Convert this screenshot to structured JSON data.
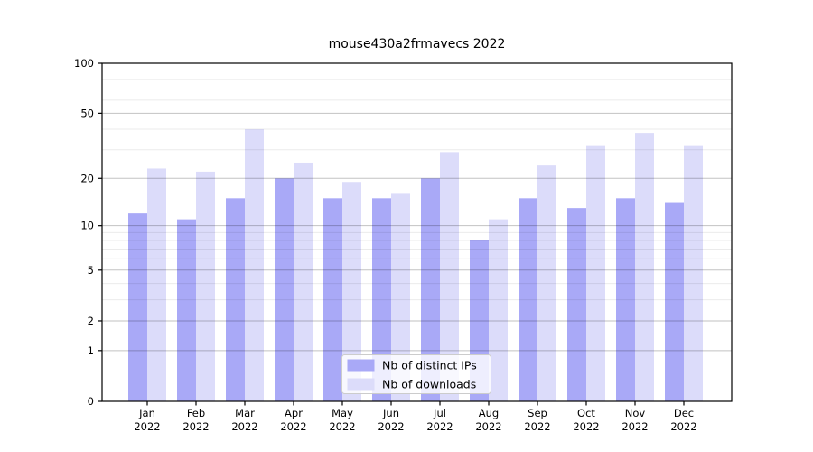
{
  "title": "mouse430a2frmavecs 2022",
  "chart_data": {
    "type": "bar",
    "title": "mouse430a2frmavecs 2022",
    "categories": [
      "Jan 2022",
      "Feb 2022",
      "Mar 2022",
      "Apr 2022",
      "May 2022",
      "Jun 2022",
      "Jul 2022",
      "Aug 2022",
      "Sep 2022",
      "Oct 2022",
      "Nov 2022",
      "Dec 2022"
    ],
    "series": [
      {
        "name": "Nb of distinct IPs",
        "color": "#a9a9f7",
        "values": [
          12,
          11,
          15,
          20,
          15,
          15,
          20,
          8,
          15,
          13,
          15,
          14
        ]
      },
      {
        "name": "Nb of downloads",
        "color": "#dcdcfa",
        "values": [
          23,
          22,
          40,
          25,
          19,
          16,
          29,
          11,
          24,
          32,
          38,
          32
        ]
      }
    ],
    "xlabel": "",
    "ylabel": "",
    "yscale": "log1p",
    "ylim": [
      0,
      100
    ],
    "yticks": [
      0,
      1,
      2,
      5,
      10,
      20,
      50,
      100
    ],
    "yticks_minor": [
      3,
      4,
      6,
      7,
      8,
      9,
      30,
      40,
      60,
      70,
      80,
      90
    ],
    "grid": true,
    "legend_position": "lower center"
  },
  "colors": {
    "frame": "#000000",
    "grid_major": "#000000",
    "grid_minor": "#000000",
    "legend_bg": "#ffffff",
    "legend_border": "#cccccc",
    "text": "#000000"
  }
}
